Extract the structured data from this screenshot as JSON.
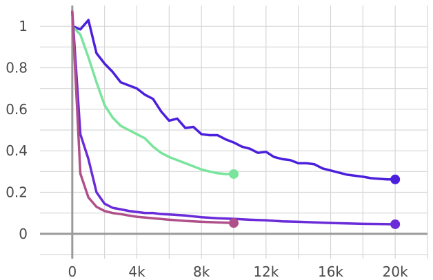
{
  "chart_data": {
    "type": "line",
    "title": "",
    "xlabel": "",
    "ylabel": "",
    "xlim": [
      -2000,
      22000
    ],
    "ylim": [
      -0.1,
      1.1
    ],
    "x_ticks": [
      0,
      2000,
      4000,
      6000,
      8000,
      10000,
      12000,
      14000,
      16000,
      18000,
      20000,
      22000
    ],
    "x_tick_labels": [
      "0",
      "",
      "4k",
      "",
      "8k",
      "",
      "12k",
      "",
      "16k",
      "",
      "20k",
      ""
    ],
    "y_ticks": [
      -0.1,
      0,
      0.1,
      0.2,
      0.3,
      0.4,
      0.5,
      0.6,
      0.7,
      0.8,
      0.9,
      1.0
    ],
    "y_tick_labels": [
      "",
      "0",
      "",
      "0.2",
      "",
      "0.4",
      "",
      "0.6",
      "",
      "0.8",
      "",
      "1"
    ],
    "grid": true,
    "series": [
      {
        "color": "#4b1fdc",
        "x": [
          0,
          500,
          1000,
          1500,
          2000,
          2500,
          3000,
          3500,
          4000,
          4500,
          5000,
          5500,
          6000,
          6500,
          7000,
          7500,
          8000,
          8500,
          9000,
          9500,
          10000,
          10500,
          11000,
          11500,
          12000,
          12500,
          13000,
          13500,
          14000,
          14500,
          15000,
          15500,
          16000,
          16500,
          17000,
          17500,
          18000,
          18500,
          19000,
          19500,
          20000
        ],
        "y": [
          1.0,
          0.985,
          1.03,
          0.87,
          0.82,
          0.78,
          0.73,
          0.715,
          0.7,
          0.67,
          0.65,
          0.59,
          0.545,
          0.555,
          0.51,
          0.515,
          0.48,
          0.475,
          0.475,
          0.455,
          0.44,
          0.42,
          0.41,
          0.39,
          0.395,
          0.37,
          0.36,
          0.355,
          0.34,
          0.34,
          0.335,
          0.315,
          0.305,
          0.295,
          0.285,
          0.28,
          0.275,
          0.268,
          0.265,
          0.262,
          0.262
        ]
      },
      {
        "color": "#79e49c",
        "x": [
          0,
          500,
          1000,
          1500,
          2000,
          2500,
          3000,
          3500,
          4000,
          4500,
          5000,
          5500,
          6000,
          6500,
          7000,
          7500,
          8000,
          8500,
          9000,
          9500,
          10000
        ],
        "y": [
          1.0,
          0.96,
          0.85,
          0.73,
          0.62,
          0.56,
          0.52,
          0.5,
          0.48,
          0.46,
          0.42,
          0.39,
          0.37,
          0.355,
          0.34,
          0.325,
          0.31,
          0.3,
          0.292,
          0.288,
          0.288
        ]
      },
      {
        "color": "#6a2bd9",
        "x": [
          0,
          500,
          1000,
          1500,
          2000,
          2500,
          3000,
          3500,
          4000,
          4500,
          5000,
          5500,
          6000,
          7000,
          8000,
          9000,
          10000,
          11000,
          12000,
          13000,
          14000,
          15000,
          16000,
          17000,
          18000,
          19000,
          20000
        ],
        "y": [
          1.07,
          0.48,
          0.36,
          0.2,
          0.145,
          0.125,
          0.118,
          0.11,
          0.105,
          0.1,
          0.1,
          0.095,
          0.093,
          0.088,
          0.08,
          0.075,
          0.072,
          0.068,
          0.065,
          0.06,
          0.058,
          0.055,
          0.052,
          0.05,
          0.048,
          0.047,
          0.046
        ]
      },
      {
        "color": "#b0508a",
        "x": [
          0,
          500,
          1000,
          1500,
          2000,
          2500,
          3000,
          3500,
          4000,
          5000,
          6000,
          7000,
          8000,
          9000,
          10000
        ],
        "y": [
          1.07,
          0.29,
          0.175,
          0.13,
          0.11,
          0.1,
          0.095,
          0.088,
          0.082,
          0.075,
          0.068,
          0.062,
          0.058,
          0.055,
          0.052
        ]
      }
    ]
  }
}
